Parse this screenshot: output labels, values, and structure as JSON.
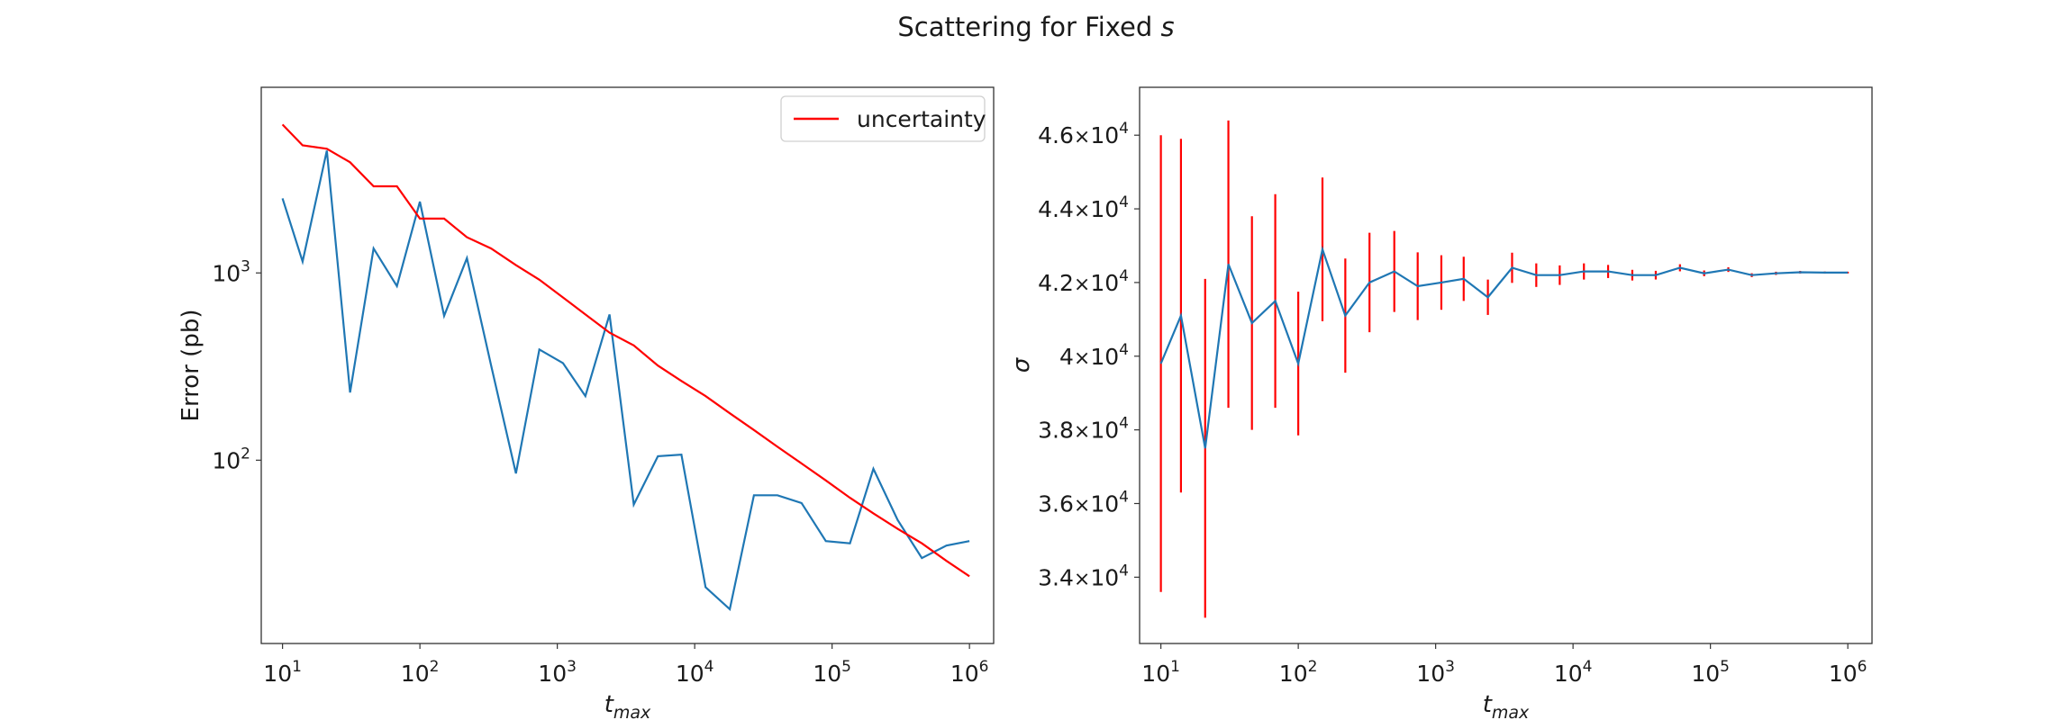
{
  "figure": {
    "title_main": "Scattering for Fixed ",
    "title_var": "s"
  },
  "chart_data": [
    {
      "type": "line",
      "xscale": "log",
      "yscale": "log",
      "xlabel": "t",
      "xlabel_sub": "max",
      "ylabel": "Error (pb)",
      "xlim": [
        7,
        1500000
      ],
      "ylim": [
        10.5,
        9800
      ],
      "xticks": [
        {
          "value": 10,
          "base": "10",
          "exp": "1"
        },
        {
          "value": 100,
          "base": "10",
          "exp": "2"
        },
        {
          "value": 1000,
          "base": "10",
          "exp": "3"
        },
        {
          "value": 10000,
          "base": "10",
          "exp": "4"
        },
        {
          "value": 100000,
          "base": "10",
          "exp": "5"
        },
        {
          "value": 1000000,
          "base": "10",
          "exp": "6"
        }
      ],
      "yticks": [
        {
          "value": 100,
          "base": "10",
          "exp": "2"
        },
        {
          "value": 1000,
          "base": "10",
          "exp": "3"
        }
      ],
      "grid": false,
      "legend": {
        "position": "top-right",
        "entries": [
          {
            "label": "uncertainty",
            "color": "#ff0000"
          }
        ]
      },
      "x": [
        10,
        14,
        21,
        31,
        46,
        68,
        100,
        150,
        220,
        330,
        500,
        740,
        1100,
        1600,
        2400,
        3600,
        5400,
        8000,
        12000,
        18000,
        27000,
        40000,
        60000,
        90000,
        135000,
        200000,
        300000,
        450000,
        680000,
        1000000
      ],
      "series": [
        {
          "color": "#1f77b4",
          "values": [
            2500,
            1150,
            4500,
            230,
            1350,
            850,
            2400,
            590,
            1200,
            320,
            85,
            390,
            330,
            220,
            600,
            58,
            105,
            107,
            21,
            16,
            65,
            65,
            59,
            37,
            36,
            90,
            48,
            30,
            35,
            37
          ]
        },
        {
          "name": "uncertainty",
          "color": "#ff0000",
          "values": [
            6200,
            4800,
            4600,
            3900,
            2900,
            2900,
            1950,
            1950,
            1550,
            1350,
            1100,
            920,
            740,
            600,
            480,
            410,
            320,
            265,
            220,
            178,
            145,
            118,
            96,
            78,
            63,
            52,
            43,
            36,
            29,
            24
          ]
        }
      ]
    },
    {
      "type": "line",
      "subtype": "errorbar",
      "xscale": "log",
      "yscale": "linear",
      "xlabel": "t",
      "xlabel_sub": "max",
      "ylabel": "σ",
      "xlim": [
        7,
        1500000
      ],
      "ylim": [
        32200,
        47300
      ],
      "xticks": [
        {
          "value": 10,
          "base": "10",
          "exp": "1"
        },
        {
          "value": 100,
          "base": "10",
          "exp": "2"
        },
        {
          "value": 1000,
          "base": "10",
          "exp": "3"
        },
        {
          "value": 10000,
          "base": "10",
          "exp": "4"
        },
        {
          "value": 100000,
          "base": "10",
          "exp": "5"
        },
        {
          "value": 1000000,
          "base": "10",
          "exp": "6"
        }
      ],
      "yticks": [
        {
          "value": 34000,
          "mant": "3.4",
          "base": "10",
          "exp": "4"
        },
        {
          "value": 36000,
          "mant": "3.6",
          "base": "10",
          "exp": "4"
        },
        {
          "value": 38000,
          "mant": "3.8",
          "base": "10",
          "exp": "4"
        },
        {
          "value": 40000,
          "mant": "4",
          "base": "10",
          "exp": "4"
        },
        {
          "value": 42000,
          "mant": "4.2",
          "base": "10",
          "exp": "4"
        },
        {
          "value": 44000,
          "mant": "4.4",
          "base": "10",
          "exp": "4"
        },
        {
          "value": 46000,
          "mant": "4.6",
          "base": "10",
          "exp": "4"
        }
      ],
      "grid": false,
      "x": [
        10,
        14,
        21,
        31,
        46,
        68,
        100,
        150,
        220,
        330,
        500,
        740,
        1100,
        1600,
        2400,
        3600,
        5400,
        8000,
        12000,
        18000,
        27000,
        40000,
        60000,
        90000,
        135000,
        200000,
        300000,
        450000,
        680000,
        1000000
      ],
      "series": [
        {
          "color": "#1f77b4",
          "values": [
            39800,
            41100,
            37500,
            42500,
            40900,
            41500,
            39800,
            42900,
            41100,
            42000,
            42300,
            41900,
            42000,
            42100,
            41600,
            42400,
            42200,
            42200,
            42300,
            42300,
            42200,
            42200,
            42400,
            42250,
            42350,
            42200,
            42250,
            42280,
            42270,
            42270
          ],
          "errors": [
            6200,
            4800,
            4600,
            3900,
            2900,
            2900,
            1950,
            1950,
            1550,
            1350,
            1100,
            920,
            740,
            600,
            480,
            410,
            320,
            265,
            220,
            178,
            145,
            118,
            96,
            78,
            63,
            52,
            43,
            36,
            29,
            24
          ],
          "error_color": "#ff0000"
        }
      ]
    }
  ]
}
